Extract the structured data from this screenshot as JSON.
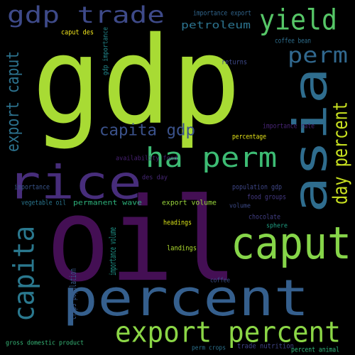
{
  "words": [
    {
      "text": "gdp",
      "color": "#a8db34",
      "orientation": "horizontal"
    },
    {
      "text": "oil",
      "color": "#440f54",
      "orientation": "horizontal"
    },
    {
      "text": "percent",
      "color": "#355f8d",
      "orientation": "horizontal"
    },
    {
      "text": "rice",
      "color": "#472d7b",
      "orientation": "horizontal"
    },
    {
      "text": "asia",
      "color": "#2f6d8e",
      "orientation": "vertical"
    },
    {
      "text": "caput",
      "color": "#86d549",
      "orientation": "horizontal"
    },
    {
      "text": "capita",
      "color": "#2a788e",
      "orientation": "vertical"
    },
    {
      "text": "export percent",
      "color": "#8bd646",
      "orientation": "horizontal"
    },
    {
      "text": "ha perm",
      "color": "#3dbc74",
      "orientation": "horizontal"
    },
    {
      "text": "yield",
      "color": "#56c667",
      "orientation": "horizontal"
    },
    {
      "text": "gdp trade",
      "color": "#3e4a89",
      "orientation": "horizontal"
    },
    {
      "text": "perm",
      "color": "#31688e",
      "orientation": "horizontal"
    },
    {
      "text": "capita gdp",
      "color": "#3b528b",
      "orientation": "horizontal"
    },
    {
      "text": "export caput",
      "color": "#2c728e",
      "orientation": "vertical"
    },
    {
      "text": "day percent",
      "color": "#c8e020",
      "orientation": "vertical"
    },
    {
      "text": "petroleum",
      "color": "#2c738e",
      "orientation": "horizontal"
    },
    {
      "text": "importance export",
      "color": "#31668e",
      "orientation": "horizontal"
    },
    {
      "text": "caput des",
      "color": "#f1e51d",
      "orientation": "horizontal"
    },
    {
      "text": "coffee bean",
      "color": "#2e6f8e",
      "orientation": "horizontal"
    },
    {
      "text": "gdp importance",
      "color": "#23898e",
      "orientation": "vertical"
    },
    {
      "text": "returns",
      "color": "#3e4989",
      "orientation": "horizontal"
    },
    {
      "text": "importance rate",
      "color": "#482576",
      "orientation": "horizontal"
    },
    {
      "text": "percentage",
      "color": "#e5e419",
      "orientation": "horizontal"
    },
    {
      "text": "availability food",
      "color": "#482173",
      "orientation": "horizontal"
    },
    {
      "text": "des day",
      "color": "#482878",
      "orientation": "horizontal"
    },
    {
      "text": "importance",
      "color": "#39558c",
      "orientation": "horizontal"
    },
    {
      "text": "population gdp",
      "color": "#3f4788",
      "orientation": "horizontal"
    },
    {
      "text": "food groups",
      "color": "#443983",
      "orientation": "horizontal"
    },
    {
      "text": "vegetable oil",
      "color": "#2a768e",
      "orientation": "horizontal"
    },
    {
      "text": "permanent wave",
      "color": "#2eb37c",
      "orientation": "horizontal"
    },
    {
      "text": "export volume",
      "color": "#9bd93c",
      "orientation": "horizontal"
    },
    {
      "text": "volume",
      "color": "#3e4c8a",
      "orientation": "horizontal"
    },
    {
      "text": "chocolate",
      "color": "#423f85",
      "orientation": "horizontal"
    },
    {
      "text": "headings",
      "color": "#d8e219",
      "orientation": "horizontal"
    },
    {
      "text": "sphere",
      "color": "#20a386",
      "orientation": "horizontal"
    },
    {
      "text": "landings",
      "color": "#b0dd2f",
      "orientation": "horizontal"
    },
    {
      "text": "importance volume",
      "color": "#1f968b",
      "orientation": "vertical"
    },
    {
      "text": "crops population",
      "color": "#38598c",
      "orientation": "vertical"
    },
    {
      "text": "coffee",
      "color": "#3c508b",
      "orientation": "horizontal"
    },
    {
      "text": "gross domestic product",
      "color": "#37b878",
      "orientation": "horizontal"
    },
    {
      "text": "perm crops",
      "color": "#2c728e",
      "orientation": "horizontal"
    },
    {
      "text": "trade nutrition",
      "color": "#414487",
      "orientation": "horizontal"
    },
    {
      "text": "percent animal",
      "color": "#31b57b",
      "orientation": "horizontal"
    }
  ]
}
